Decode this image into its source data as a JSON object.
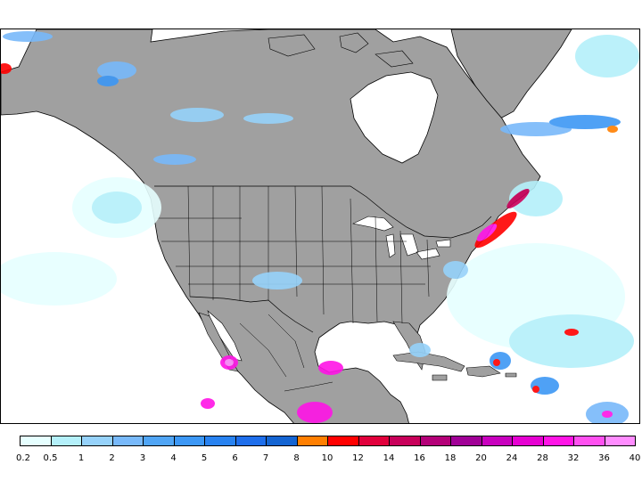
{
  "legend": {
    "colors": [
      "#e6ffff",
      "#b4f0fa",
      "#96d2fa",
      "#78b9fa",
      "#50a5f5",
      "#3c97f5",
      "#2882f0",
      "#1e6eeb",
      "#1464d2",
      "#ff7f00",
      "#ff0000",
      "#e1003c",
      "#c8005a",
      "#b40078",
      "#a00096",
      "#c800be",
      "#e600d2",
      "#ff14e6",
      "#ff50f0",
      "#ff8cff"
    ],
    "tick_labels": [
      "0.2",
      "0.5",
      "1",
      "2",
      "3",
      "4",
      "5",
      "6",
      "7",
      "8",
      "10",
      "12",
      "14",
      "16",
      "18",
      "20",
      "24",
      "28",
      "32",
      "36",
      "40"
    ]
  },
  "map": {
    "land_color": "#a0a0a0",
    "ocean_color": "#ffffff",
    "boundary_color": "#000000"
  }
}
